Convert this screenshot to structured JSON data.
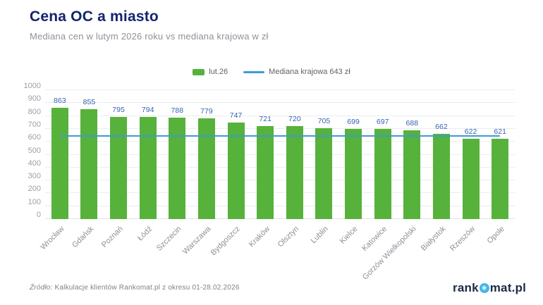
{
  "header": {
    "title": "Cena OC a miasto",
    "subtitle": "Mediana cen w lutym 2026 roku vs mediana krajowa w zł"
  },
  "legend": {
    "series_label": "lut.26",
    "line_label": "Mediana krajowa 643 zł"
  },
  "chart_data": {
    "type": "bar",
    "title": "Cena OC a miasto",
    "subtitle": "Mediana cen w lutym 2026 roku vs mediana krajowa w zł",
    "categories": [
      "Wrocław",
      "Gdańsk",
      "Poznań",
      "Łódź",
      "Szczecin",
      "Warszawa",
      "Bydgoszcz",
      "Kraków",
      "Olsztyn",
      "Lublin",
      "Kielce",
      "Katowice",
      "Gorzów Wielkopolski",
      "Białystok",
      "Rzeszów",
      "Opole"
    ],
    "series": [
      {
        "name": "lut.26",
        "values": [
          863,
          855,
          795,
          794,
          788,
          779,
          747,
          721,
          720,
          705,
          699,
          697,
          688,
          662,
          622,
          621
        ]
      }
    ],
    "reference_line": {
      "label": "Mediana krajowa 643 zł",
      "value": 643
    },
    "ylim": [
      0,
      1000
    ],
    "ytick_step": 100,
    "grid": true,
    "legend_position": "top",
    "colors": {
      "bar": "#56b23a",
      "reference_line": "#3e9bd4",
      "value_label": "#3565b0",
      "title": "#13256e"
    }
  },
  "footer": {
    "source_prefix": "Źródło:",
    "source_text": "Kalkulacje klientów Rankomat.pl z okresu 01-28.02.2026"
  },
  "logo": {
    "prefix": "rank",
    "o_icon": "aperture-icon",
    "o_glyph": "✳",
    "suffix": "mat.pl"
  }
}
